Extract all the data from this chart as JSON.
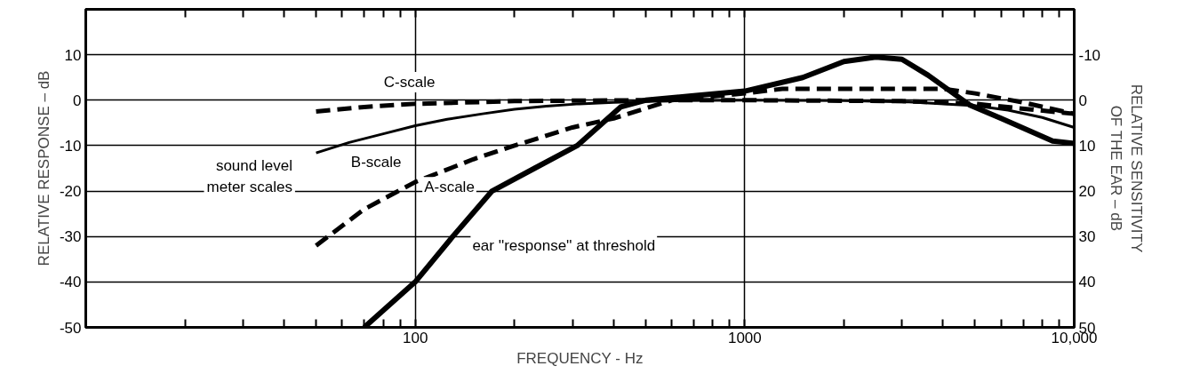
{
  "chart_data": {
    "type": "line",
    "xlabel": "FREQUENCY - Hz",
    "ylabel": "RELATIVE RESPONSE – dB",
    "y2label": "RELATIVE SENSITIVITY\nOF THE EAR – dB",
    "log": "x",
    "xlim": [
      10,
      10000
    ],
    "ylim": [
      -50,
      20
    ],
    "y2lim": [
      50,
      -20
    ],
    "xticks": [
      {
        "value": 20,
        "label": null
      },
      {
        "value": 30,
        "label": null
      },
      {
        "value": 40,
        "label": null
      },
      {
        "value": 50,
        "label": null
      },
      {
        "value": 60,
        "label": null
      },
      {
        "value": 70,
        "label": null
      },
      {
        "value": 80,
        "label": null
      },
      {
        "value": 90,
        "label": null
      },
      100,
      {
        "value": 200,
        "label": null
      },
      {
        "value": 300,
        "label": null
      },
      {
        "value": 400,
        "label": null
      },
      {
        "value": 500,
        "label": null
      },
      {
        "value": 600,
        "label": null
      },
      {
        "value": 700,
        "label": null
      },
      {
        "value": 800,
        "label": null
      },
      {
        "value": 900,
        "label": null
      },
      1000,
      {
        "value": 2000,
        "label": null
      },
      {
        "value": 3000,
        "label": null
      },
      {
        "value": 4000,
        "label": null
      },
      {
        "value": 5000,
        "label": null
      },
      {
        "value": 6000,
        "label": null
      },
      {
        "value": 7000,
        "label": null
      },
      {
        "value": 8000,
        "label": null
      },
      {
        "value": 9000,
        "label": null
      },
      {
        "value": 10000,
        "label": "10,000"
      }
    ],
    "yticks": [
      -50,
      -40,
      -30,
      -20,
      -10,
      0,
      10
    ],
    "y2ticks": [
      50,
      40,
      30,
      20,
      10,
      0,
      -10
    ],
    "grid": true,
    "marker": "none",
    "series": [
      {
        "name": "C-scale",
        "color": "#000000",
        "line_style": "dashed",
        "x": [
          50,
          70,
          100,
          200,
          500,
          1000,
          3000,
          5000,
          10000
        ],
        "values": [
          -2.5,
          -1.5,
          -0.8,
          -0.2,
          0,
          0,
          -0.2,
          -0.8,
          -3
        ]
      },
      {
        "name": "B-scale",
        "color": "#000000",
        "line_style": "solid",
        "x": [
          50,
          63,
          80,
          100,
          125,
          160,
          200,
          250,
          315,
          400,
          500,
          630,
          1000,
          2000,
          3150,
          5000,
          6300,
          8000,
          10000
        ],
        "values": [
          -11.6,
          -9.3,
          -7.4,
          -5.6,
          -4.2,
          -3,
          -2,
          -1.3,
          -0.8,
          -0.5,
          -0.3,
          -0.1,
          0,
          -0.1,
          -0.4,
          -1.2,
          -2.2,
          -3.8,
          -6
        ]
      },
      {
        "name": "A-scale",
        "color": "#000000",
        "line_style": "dashed",
        "x": [
          50,
          70,
          100,
          150,
          200,
          300,
          400,
          600,
          1000,
          1300,
          2000,
          4000,
          5000,
          7000,
          10000
        ],
        "values": [
          -32,
          -24,
          -18,
          -13,
          -10,
          -6,
          -4,
          0,
          1.5,
          2.5,
          2.5,
          2.5,
          1.5,
          -0.5,
          -3
        ]
      },
      {
        "name": "ear ''response'' at threshold",
        "color": "#000000",
        "line_style": "solid",
        "axis": "y2",
        "x": [
          70,
          100,
          130,
          171,
          230,
          310,
          420,
          500,
          700,
          1000,
          1500,
          2000,
          2500,
          3000,
          3600,
          4800,
          6000,
          8600,
          10000
        ],
        "values": [
          50,
          40,
          30,
          20,
          15,
          10,
          1.5,
          0,
          -1,
          -2,
          -5,
          -8.5,
          -9.5,
          -9,
          -5.5,
          1,
          4,
          9,
          9.5
        ]
      }
    ],
    "annotations": [
      "sound level\nmeter scales"
    ]
  }
}
